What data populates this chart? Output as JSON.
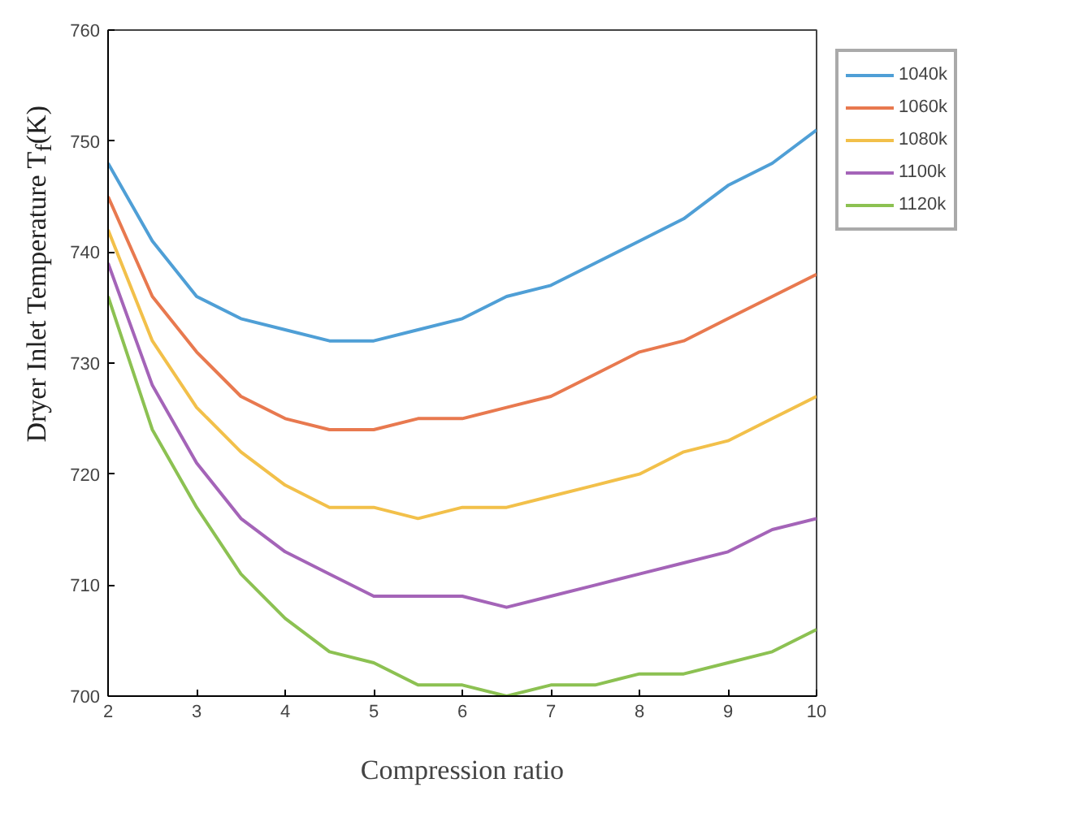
{
  "chart_data": {
    "type": "line",
    "xlabel": "Compression ratio",
    "ylabel": "Dryer Inlet Temperature T$_{f}$(K)",
    "x": [
      2,
      2.5,
      3,
      3.5,
      4,
      4.5,
      5,
      5.5,
      6,
      6.5,
      7,
      7.5,
      8,
      8.5,
      9,
      9.5,
      10
    ],
    "series": [
      {
        "name": "1040k",
        "color": "#4f9fd6",
        "values": [
          748,
          741,
          736,
          734,
          733,
          732,
          732,
          733,
          734,
          736,
          737,
          739,
          741,
          743,
          746,
          748,
          751
        ]
      },
      {
        "name": "1060k",
        "color": "#e8794f",
        "values": [
          745,
          736,
          731,
          727,
          725,
          724,
          724,
          725,
          725,
          726,
          727,
          729,
          731,
          732,
          734,
          736,
          738
        ]
      },
      {
        "name": "1080k",
        "color": "#f2c04a",
        "values": [
          742,
          732,
          726,
          722,
          719,
          717,
          717,
          716,
          717,
          717,
          718,
          719,
          720,
          722,
          723,
          725,
          727
        ]
      },
      {
        "name": "1100k",
        "color": "#a464b8",
        "values": [
          739,
          728,
          721,
          716,
          713,
          711,
          709,
          709,
          709,
          708,
          709,
          710,
          711,
          712,
          713,
          715,
          716
        ]
      },
      {
        "name": "1120k",
        "color": "#8cc152",
        "values": [
          736,
          724,
          717,
          711,
          707,
          704,
          703,
          701,
          701,
          700,
          701,
          701,
          702,
          702,
          703,
          704,
          706
        ]
      }
    ],
    "xlim": [
      2,
      10
    ],
    "xticks": [
      2,
      3,
      4,
      5,
      6,
      7,
      8,
      9,
      10
    ],
    "ylim": [
      700,
      760
    ],
    "yticks": [
      700,
      710,
      720,
      730,
      740,
      750,
      760
    ],
    "grid": false,
    "legend": "top right",
    "line_style": "solid",
    "marker": "none"
  }
}
